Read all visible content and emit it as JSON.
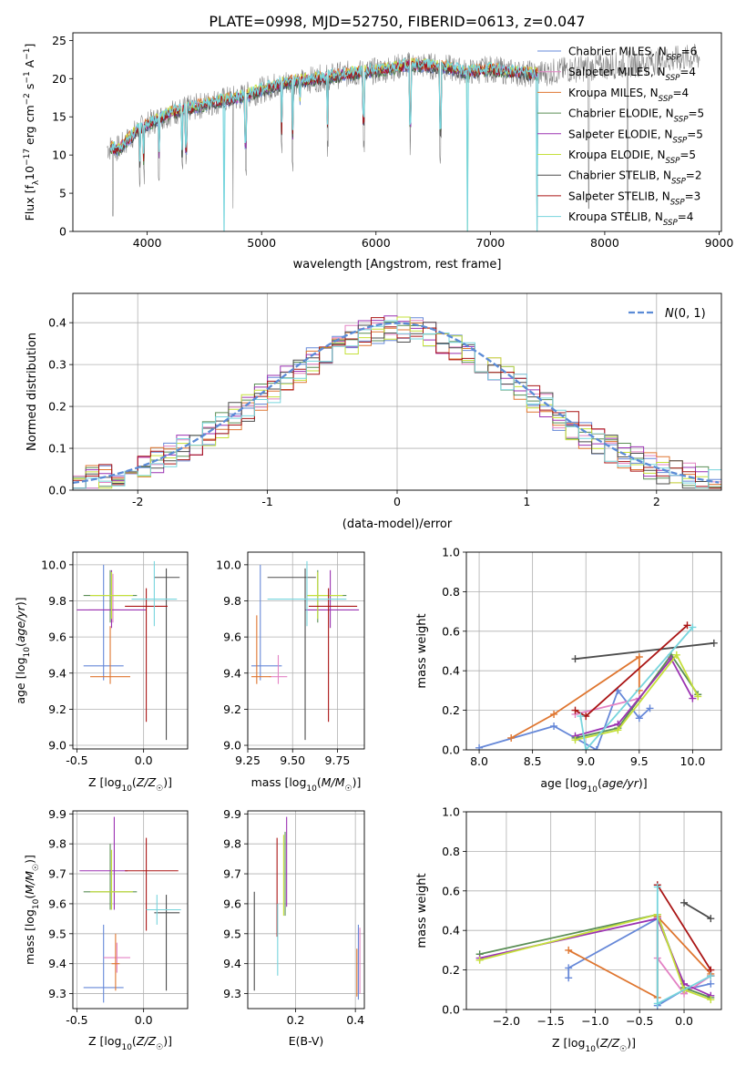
{
  "figure": {
    "title": "PLATE=0998, MJD=52750, FIBERID=0613, z=0.047"
  },
  "chart_data": [
    {
      "id": "spectrum",
      "type": "line",
      "xlabel": "wavelength [Angstrom, rest frame]",
      "ylabel": "Flux [f_λ10^-17 erg cm^-2 s^-1 A^-1]",
      "xlim": [
        3350,
        9020
      ],
      "ylim": [
        0,
        26
      ],
      "xticks": [
        4000,
        5000,
        6000,
        7000,
        8000,
        9000
      ],
      "yticks": [
        0,
        5,
        10,
        15,
        20,
        25
      ],
      "grid": false,
      "legend_position": "top-right",
      "observed_color": "#808080",
      "continuum": [
        [
          3650,
          11
        ],
        [
          3750,
          10.8
        ],
        [
          3900,
          13
        ],
        [
          4000,
          14
        ],
        [
          4200,
          15.5
        ],
        [
          4400,
          16.2
        ],
        [
          4600,
          17
        ],
        [
          4800,
          17.5
        ],
        [
          5000,
          18.5
        ],
        [
          5200,
          19.5
        ],
        [
          5400,
          19.8
        ],
        [
          5700,
          20.5
        ],
        [
          6000,
          21
        ],
        [
          6300,
          21.8
        ],
        [
          6600,
          21.5
        ],
        [
          6800,
          20.8
        ],
        [
          7000,
          21.3
        ],
        [
          7200,
          20.8
        ],
        [
          7400,
          20.6
        ],
        [
          7700,
          21.2
        ],
        [
          8000,
          21.6
        ],
        [
          8300,
          22
        ],
        [
          8600,
          22.5
        ],
        [
          8800,
          22.8
        ]
      ],
      "model_range": [
        3680,
        7420
      ],
      "observed_range": [
        3650,
        8830
      ],
      "absorption_lines": [
        [
          3934,
          3
        ],
        [
          3969,
          4
        ],
        [
          4102,
          4
        ],
        [
          4305,
          3
        ],
        [
          4340,
          4
        ],
        [
          4861,
          3
        ],
        [
          5175,
          5
        ],
        [
          5270,
          3
        ],
        [
          5335,
          14
        ],
        [
          5577,
          4
        ],
        [
          5893,
          6
        ],
        [
          6300,
          4
        ],
        [
          6563,
          2
        ]
      ],
      "model_spikes": [
        [
          4670,
          0
        ],
        [
          6800,
          0
        ],
        [
          7410,
          0
        ]
      ],
      "observed_spikes": [
        [
          3700,
          2
        ],
        [
          4750,
          3
        ],
        [
          7860,
          3
        ],
        [
          8200,
          2
        ]
      ],
      "series": [
        {
          "name": "Chabrier MILES, N_SSP=6",
          "color": "#6688d8"
        },
        {
          "name": "Salpeter MILES, N_SSP=4",
          "color": "#e382c4"
        },
        {
          "name": "Kroupa MILES, N_SSP=4",
          "color": "#df7630"
        },
        {
          "name": "Chabrier ELODIE, N_SSP=5",
          "color": "#5a8e55"
        },
        {
          "name": "Salpeter ELODIE, N_SSP=5",
          "color": "#9b32b2"
        },
        {
          "name": "Kroupa ELODIE, N_SSP=5",
          "color": "#c5e03a"
        },
        {
          "name": "Chabrier STELIB, N_SSP=2",
          "color": "#4d4d4d"
        },
        {
          "name": "Salpeter STELIB, N_SSP=3",
          "color": "#aa1515"
        },
        {
          "name": "Kroupa STELIB, N_SSP=4",
          "color": "#77d5dd"
        }
      ]
    },
    {
      "id": "residuals",
      "type": "histogram",
      "xlabel": "(data-model)/error",
      "ylabel": "Normed distribution",
      "xlim": [
        -2.5,
        2.5
      ],
      "ylim": [
        0,
        0.47
      ],
      "xticks": [
        -2,
        -1,
        0,
        1,
        2
      ],
      "yticks": [
        0.0,
        0.1,
        0.2,
        0.3,
        0.4
      ],
      "grid": true,
      "bin_width": 0.1,
      "legend_position": "top-right",
      "legend_text": "N(0,1)",
      "normal_curve": {
        "mean": 0,
        "sigma": 1,
        "color": "#5b8bd6",
        "style": "dashed"
      }
    },
    {
      "id": "age-vs-Z",
      "type": "errorbar",
      "xlabel": "Z [log10(Z/Z☉)]",
      "ylabel": "age  [log10(age/yr)]",
      "xlim": [
        -0.53,
        0.33
      ],
      "ylim": [
        8.98,
        10.07
      ],
      "xticks": [
        -0.5,
        0.0
      ],
      "yticks": [
        9.0,
        9.2,
        9.4,
        9.6,
        9.8,
        10.0
      ],
      "grid": true,
      "points": [
        {
          "x": -0.3,
          "y": 9.44,
          "xerr": [
            0.15,
            0.15
          ],
          "yerr": [
            0.08,
            0.56
          ],
          "color": "#6688d8"
        },
        {
          "x": -0.23,
          "y": 9.75,
          "xerr": [
            0.18,
            0.05
          ],
          "yerr": [
            0.07,
            0.2
          ],
          "color": "#e382c4"
        },
        {
          "x": -0.25,
          "y": 9.38,
          "xerr": [
            0.15,
            0.15
          ],
          "yerr": [
            0.04,
            0.28
          ],
          "color": "#df7630"
        },
        {
          "x": -0.25,
          "y": 9.83,
          "xerr": [
            0.2,
            0.2
          ],
          "yerr": [
            0.15,
            0.14
          ],
          "color": "#5a8e55"
        },
        {
          "x": -0.24,
          "y": 9.75,
          "xerr": [
            0.26,
            0.26
          ],
          "yerr": [
            0.1,
            0.22
          ],
          "color": "#9b32b2"
        },
        {
          "x": -0.24,
          "y": 9.83,
          "xerr": [
            0.16,
            0.16
          ],
          "yerr": [
            0.13,
            0.13
          ],
          "color": "#c5e03a"
        },
        {
          "x": 0.17,
          "y": 9.93,
          "xerr": [
            0.09,
            0.1
          ],
          "yerr": [
            0.9,
            0.05
          ],
          "color": "#4d4d4d"
        },
        {
          "x": 0.02,
          "y": 9.77,
          "xerr": [
            0.16,
            0.16
          ],
          "yerr": [
            0.64,
            0.1
          ],
          "color": "#aa1515"
        },
        {
          "x": 0.08,
          "y": 9.81,
          "xerr": [
            0.17,
            0.17
          ],
          "yerr": [
            0.15,
            0.21
          ],
          "color": "#77d5dd"
        }
      ]
    },
    {
      "id": "age-vs-mass",
      "type": "errorbar",
      "xlabel": "mass [log10(M/M☉)]",
      "ylabel": "",
      "xlim": [
        9.25,
        9.9
      ],
      "ylim": [
        8.98,
        10.07
      ],
      "xticks": [
        9.25,
        9.5,
        9.75
      ],
      "yticks": [
        9.0,
        9.2,
        9.4,
        9.6,
        9.8,
        10.0
      ],
      "grid": true,
      "points": [
        {
          "x": 9.32,
          "y": 9.44,
          "xerr": [
            0.05,
            0.12
          ],
          "yerr": [
            0.08,
            0.56
          ],
          "color": "#6688d8"
        },
        {
          "x": 9.42,
          "y": 9.38,
          "xerr": [
            0.05,
            0.05
          ],
          "yerr": [
            0.04,
            0.12
          ],
          "color": "#e382c4"
        },
        {
          "x": 9.3,
          "y": 9.38,
          "xerr": [
            0.03,
            0.08
          ],
          "yerr": [
            0.04,
            0.34
          ],
          "color": "#df7630"
        },
        {
          "x": 9.64,
          "y": 9.83,
          "xerr": [
            0.06,
            0.16
          ],
          "yerr": [
            0.15,
            0.14
          ],
          "color": "#5a8e55"
        },
        {
          "x": 9.71,
          "y": 9.75,
          "xerr": [
            0.14,
            0.16
          ],
          "yerr": [
            0.1,
            0.22
          ],
          "color": "#9b32b2"
        },
        {
          "x": 9.64,
          "y": 9.83,
          "xerr": [
            0.06,
            0.14
          ],
          "yerr": [
            0.13,
            0.13
          ],
          "color": "#c5e03a"
        },
        {
          "x": 9.57,
          "y": 9.93,
          "xerr": [
            0.21,
            0.06
          ],
          "yerr": [
            0.9,
            0.05
          ],
          "color": "#4d4d4d"
        },
        {
          "x": 9.7,
          "y": 9.77,
          "xerr": [
            0.11,
            0.16
          ],
          "yerr": [
            0.64,
            0.1
          ],
          "color": "#aa1515"
        },
        {
          "x": 9.58,
          "y": 9.81,
          "xerr": [
            0.22,
            0.22
          ],
          "yerr": [
            0.15,
            0.21
          ],
          "color": "#77d5dd"
        }
      ]
    },
    {
      "id": "weight-vs-age",
      "type": "line",
      "xlabel": "age  [log10(age/yr)]",
      "ylabel": "mass weight",
      "xlim": [
        7.88,
        10.27
      ],
      "ylim": [
        0,
        1.0
      ],
      "xticks": [
        8.0,
        8.5,
        9.0,
        9.5,
        10.0
      ],
      "yticks": [
        0.0,
        0.2,
        0.4,
        0.6,
        0.8,
        1.0
      ],
      "grid": true,
      "series": [
        {
          "color": "#6688d8",
          "x": [
            8.0,
            8.7,
            9.1,
            9.3,
            9.5,
            9.6
          ],
          "y": [
            0.01,
            0.12,
            0.0,
            0.3,
            0.16,
            0.21
          ]
        },
        {
          "color": "#e382c4",
          "x": [
            8.9,
            9.5,
            9.8,
            9.5
          ],
          "y": [
            0.18,
            0.26,
            0.47,
            0.26
          ]
        },
        {
          "color": "#df7630",
          "x": [
            8.3,
            8.7,
            9.5,
            9.5
          ],
          "y": [
            0.06,
            0.18,
            0.47,
            0.3
          ]
        },
        {
          "color": "#5a8e55",
          "x": [
            8.9,
            9.3,
            9.8,
            10.05
          ],
          "y": [
            0.06,
            0.11,
            0.48,
            0.28
          ]
        },
        {
          "color": "#9b32b2",
          "x": [
            8.9,
            9.3,
            9.8,
            10.0
          ],
          "y": [
            0.07,
            0.13,
            0.46,
            0.26
          ]
        },
        {
          "color": "#c5e03a",
          "x": [
            8.9,
            9.3,
            9.85,
            10.05
          ],
          "y": [
            0.05,
            0.1,
            0.48,
            0.27
          ]
        },
        {
          "color": "#4d4d4d",
          "x": [
            8.9,
            10.2
          ],
          "y": [
            0.46,
            0.54
          ]
        },
        {
          "color": "#aa1515",
          "x": [
            8.9,
            9.0,
            9.95
          ],
          "y": [
            0.2,
            0.17,
            0.63
          ]
        },
        {
          "color": "#77d5dd",
          "x": [
            8.95,
            9.0,
            10.0
          ],
          "y": [
            0.17,
            0.0,
            0.62
          ]
        }
      ]
    },
    {
      "id": "mass-vs-Z",
      "type": "errorbar",
      "xlabel": "Z [log10(Z/Z☉)]",
      "ylabel": "mass [log10(M/M☉)]",
      "xlim": [
        -0.53,
        0.33
      ],
      "ylim": [
        9.25,
        9.91
      ],
      "xticks": [
        -0.5,
        0.0
      ],
      "yticks": [
        9.3,
        9.4,
        9.5,
        9.6,
        9.7,
        9.8,
        9.9
      ],
      "grid": true,
      "points": [
        {
          "x": -0.3,
          "y": 9.32,
          "xerr": [
            0.15,
            0.15
          ],
          "yerr": [
            0.05,
            0.21
          ],
          "color": "#6688d8"
        },
        {
          "x": -0.2,
          "y": 9.42,
          "xerr": [
            0.1,
            0.1
          ],
          "yerr": [
            0.05,
            0.05
          ],
          "color": "#e382c4"
        },
        {
          "x": -0.21,
          "y": 9.4,
          "xerr": [
            0.03,
            0.03
          ],
          "yerr": [
            0.09,
            0.1
          ],
          "color": "#df7630"
        },
        {
          "x": -0.25,
          "y": 9.64,
          "xerr": [
            0.2,
            0.2
          ],
          "yerr": [
            0.06,
            0.16
          ],
          "color": "#5a8e55"
        },
        {
          "x": -0.22,
          "y": 9.71,
          "xerr": [
            0.26,
            0.1
          ],
          "yerr": [
            0.13,
            0.18
          ],
          "color": "#9b32b2"
        },
        {
          "x": -0.24,
          "y": 9.64,
          "xerr": [
            0.16,
            0.16
          ],
          "yerr": [
            0.06,
            0.14
          ],
          "color": "#c5e03a"
        },
        {
          "x": 0.17,
          "y": 9.57,
          "xerr": [
            0.09,
            0.1
          ],
          "yerr": [
            0.26,
            0.06
          ],
          "color": "#4d4d4d"
        },
        {
          "x": 0.02,
          "y": 9.71,
          "xerr": [
            0.16,
            0.24
          ],
          "yerr": [
            0.2,
            0.11
          ],
          "color": "#aa1515"
        },
        {
          "x": 0.1,
          "y": 9.58,
          "xerr": [
            0.08,
            0.18
          ],
          "yerr": [
            0.05,
            0.05
          ],
          "color": "#77d5dd"
        }
      ]
    },
    {
      "id": "mass-vs-EBV",
      "type": "errorbar",
      "xlabel": "E(B-V)",
      "ylabel": "",
      "xlim": [
        0.04,
        0.43
      ],
      "ylim": [
        9.25,
        9.91
      ],
      "xticks": [
        0.2,
        0.4
      ],
      "yticks": [
        9.3,
        9.4,
        9.5,
        9.6,
        9.7,
        9.8,
        9.9
      ],
      "grid": true,
      "points": [
        {
          "x": 0.41,
          "y": 9.32,
          "xerr": [
            0.0,
            0.0
          ],
          "yerr": [
            0.04,
            0.21
          ],
          "color": "#6688d8"
        },
        {
          "x": 0.415,
          "y": 9.42,
          "xerr": [
            0.0,
            0.0
          ],
          "yerr": [
            0.12,
            0.1
          ],
          "color": "#e382c4"
        },
        {
          "x": 0.405,
          "y": 9.4,
          "xerr": [
            0.0,
            0.0
          ],
          "yerr": [
            0.11,
            0.05
          ],
          "color": "#df7630"
        },
        {
          "x": 0.165,
          "y": 9.64,
          "xerr": [
            0.0,
            0.0
          ],
          "yerr": [
            0.08,
            0.2
          ],
          "color": "#5a8e55"
        },
        {
          "x": 0.17,
          "y": 9.71,
          "xerr": [
            0.0,
            0.0
          ],
          "yerr": [
            0.12,
            0.18
          ],
          "color": "#9b32b2"
        },
        {
          "x": 0.16,
          "y": 9.64,
          "xerr": [
            0.0,
            0.0
          ],
          "yerr": [
            0.08,
            0.19
          ],
          "color": "#c5e03a"
        },
        {
          "x": 0.062,
          "y": 9.47,
          "xerr": [
            0.0,
            0.0
          ],
          "yerr": [
            0.16,
            0.17
          ],
          "color": "#4d4d4d"
        },
        {
          "x": 0.138,
          "y": 9.65,
          "xerr": [
            0.0,
            0.0
          ],
          "yerr": [
            0.16,
            0.17
          ],
          "color": "#aa1515"
        },
        {
          "x": 0.14,
          "y": 9.48,
          "xerr": [
            0.0,
            0.0
          ],
          "yerr": [
            0.12,
            0.12
          ],
          "color": "#77d5dd"
        }
      ]
    },
    {
      "id": "weight-vs-Z",
      "type": "line",
      "xlabel": "Z [log10(Z/Z☉)]",
      "ylabel": "mass weight",
      "xlim": [
        -2.45,
        0.42
      ],
      "ylim": [
        0,
        1.0
      ],
      "xticks": [
        -2.0,
        -1.5,
        -1.0,
        -0.5,
        0.0
      ],
      "yticks": [
        0.0,
        0.2,
        0.4,
        0.6,
        0.8,
        1.0
      ],
      "grid": true,
      "series": [
        {
          "color": "#6688d8",
          "x": [
            -1.3,
            -1.3,
            -0.3,
            -0.3,
            0.0,
            0.3
          ],
          "y": [
            0.16,
            0.21,
            0.46,
            0.02,
            0.1,
            0.13
          ]
        },
        {
          "color": "#e382c4",
          "x": [
            -0.3,
            -0.3,
            0.0,
            0.3
          ],
          "y": [
            0.47,
            0.26,
            0.08,
            0.17
          ]
        },
        {
          "color": "#df7630",
          "x": [
            -1.3,
            -0.3,
            -0.3,
            0.3
          ],
          "y": [
            0.3,
            0.06,
            0.47,
            0.18
          ]
        },
        {
          "color": "#5a8e55",
          "x": [
            -2.3,
            -0.3,
            0.0,
            0.3
          ],
          "y": [
            0.28,
            0.48,
            0.11,
            0.06
          ]
        },
        {
          "color": "#9b32b2",
          "x": [
            -2.3,
            -0.3,
            0.0,
            0.3
          ],
          "y": [
            0.26,
            0.46,
            0.13,
            0.07
          ]
        },
        {
          "color": "#c5e03a",
          "x": [
            -2.3,
            -0.3,
            0.0,
            0.3
          ],
          "y": [
            0.25,
            0.48,
            0.1,
            0.05
          ]
        },
        {
          "color": "#4d4d4d",
          "x": [
            0.0,
            0.3
          ],
          "y": [
            0.54,
            0.46
          ]
        },
        {
          "color": "#aa1515",
          "x": [
            -0.3,
            0.3,
            0.3
          ],
          "y": [
            0.63,
            0.2,
            0.17
          ]
        },
        {
          "color": "#77d5dd",
          "x": [
            -0.3,
            -0.3,
            0.3
          ],
          "y": [
            0.62,
            0.03,
            0.17
          ]
        }
      ]
    }
  ]
}
